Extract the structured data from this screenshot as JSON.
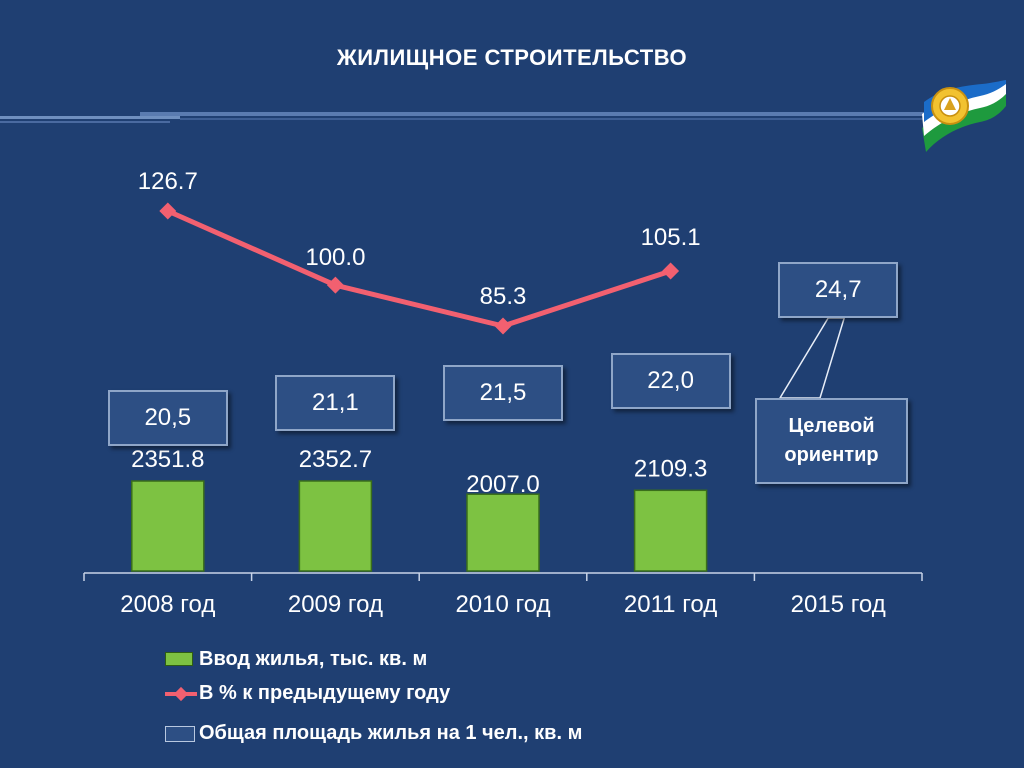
{
  "slide": {
    "title": "ЖИЛИЩНОЕ СТРОИТЕЛЬСТВО"
  },
  "colors": {
    "background": "#1f3f72",
    "bar_fill": "#7dc242",
    "line": "#f26070",
    "box_fill": "#2d4f84",
    "box_border": "#8fa6c8"
  },
  "icons": {
    "emblem": "bashkortostan-flag-emblem-icon"
  },
  "target_label": {
    "line1": "Целевой",
    "line2": "ориентир"
  },
  "chart_data": {
    "type": "bar",
    "categories": [
      "2008 год",
      "2009 год",
      "2010 год",
      "2011 год",
      "2015 год"
    ],
    "series": [
      {
        "name": "Ввод жилья, тыс. кв. м",
        "type": "bar",
        "values": [
          2351.8,
          2352.7,
          2007.0,
          2109.3,
          null
        ],
        "labels": [
          "2351.8",
          "2352.7",
          "2007.0",
          "2109.3",
          ""
        ]
      },
      {
        "name": "В % к предыдущему году",
        "type": "line",
        "values": [
          126.7,
          100.0,
          85.3,
          105.1,
          null
        ],
        "labels": [
          "126.7",
          "100.0",
          "85.3",
          "105.1",
          ""
        ]
      },
      {
        "name": "Общая площадь жилья на 1 чел., кв. м",
        "type": "label-box",
        "values": [
          20.5,
          21.1,
          21.5,
          22.0,
          24.7
        ],
        "labels": [
          "20,5",
          "21,1",
          "21,5",
          "22,0",
          "24,7"
        ]
      }
    ],
    "legend": {
      "position": "bottom",
      "items": [
        {
          "label": "Ввод жилья, тыс. кв. м",
          "kind": "bar"
        },
        {
          "label": "В % к предыдущему году",
          "kind": "line"
        },
        {
          "label": "Общая площадь жилья на 1 чел., кв. м",
          "kind": "box"
        }
      ]
    },
    "grid": false
  }
}
